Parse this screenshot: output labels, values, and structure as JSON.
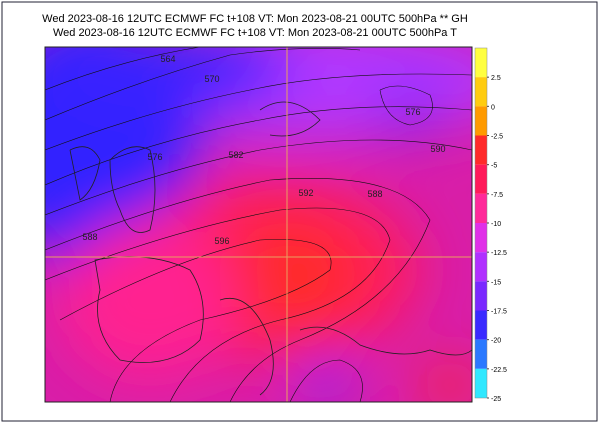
{
  "header": {
    "line1": "Wed 2023-08-16 12UTC ECMWF  FC t+108 VT: Mon 2023-08-21 00UTC 500hPa ** GH",
    "line2": "Wed 2023-08-16 12UTC ECMWF  FC t+108 VT: Mon 2023-08-21 00UTC 500hPa  T"
  },
  "colorbar": {
    "lim": [
      -25,
      5
    ],
    "ticks": [
      2.5,
      0,
      -2.5,
      -5,
      -7.5,
      -10,
      -12.5,
      -15,
      -17.5,
      -20,
      -22.5,
      -25
    ],
    "colors": [
      "#ffff40",
      "#ffcc10",
      "#ff9a00",
      "#ff2a2a",
      "#ff1a5a",
      "#ff2a9a",
      "#e030e8",
      "#b030ff",
      "#7a28ff",
      "#3a2aff",
      "#2a78ff",
      "#30e8ff"
    ]
  },
  "contour_labels": [
    "564",
    "570",
    "576",
    "582",
    "588",
    "592",
    "596",
    "588",
    "576",
    "590"
  ]
}
